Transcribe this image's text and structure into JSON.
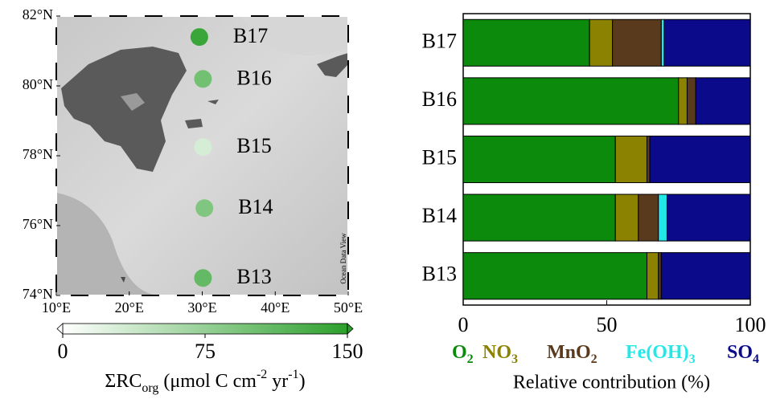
{
  "chart_data": [
    {
      "type": "map",
      "xlim": [
        10,
        50
      ],
      "ylim": [
        74,
        82
      ],
      "xticks": [
        {
          "value": 10,
          "label": "10°E"
        },
        {
          "value": 20,
          "label": "20°E"
        },
        {
          "value": 30,
          "label": "30°E"
        },
        {
          "value": 40,
          "label": "40°E"
        },
        {
          "value": 50,
          "label": "50°E"
        }
      ],
      "yticks": [
        {
          "value": 74,
          "label": "74°N"
        },
        {
          "value": 76,
          "label": "76°N"
        },
        {
          "value": 78,
          "label": "78°N"
        },
        {
          "value": 80,
          "label": "80°N"
        },
        {
          "value": 82,
          "label": "82°N"
        }
      ],
      "watermark": "Ocean Data View",
      "stations": [
        "B17",
        "B16",
        "B15",
        "B14",
        "B13"
      ],
      "x": [
        29.6,
        30.1,
        30.1,
        30.3,
        30.1
      ],
      "y": [
        81.4,
        80.2,
        78.25,
        76.5,
        74.5
      ],
      "values": [
        140,
        100,
        30,
        90,
        110
      ],
      "colorbar": {
        "lim": [
          0,
          150
        ],
        "ticks": [
          0,
          75,
          150
        ],
        "label": [
          "ΣRC",
          "org",
          " (μmol C cm",
          "-2",
          " yr",
          "-1",
          ")"
        ],
        "colors": [
          "#ffffff",
          "#2ca02c"
        ]
      }
    },
    {
      "type": "bar",
      "orientation": "horizontal",
      "stacked": true,
      "categories": [
        "B17",
        "B16",
        "B15",
        "B14",
        "B13"
      ],
      "series": [
        {
          "name": "O2",
          "color": "#0b8a0b",
          "values": [
            44,
            75,
            53,
            53,
            64
          ]
        },
        {
          "name": "NO3",
          "color": "#8a8200",
          "values": [
            8,
            3,
            11,
            8,
            4
          ]
        },
        {
          "name": "MnO2",
          "color": "#5a3a1c",
          "values": [
            17,
            3,
            1,
            7,
            1
          ]
        },
        {
          "name": "Fe(OH)3",
          "color": "#22e8e8",
          "values": [
            1,
            0,
            0,
            3,
            0
          ]
        },
        {
          "name": "SO4",
          "color": "#0a0a8a",
          "values": [
            30,
            19,
            35,
            29,
            31
          ]
        }
      ],
      "xlim": [
        0,
        100
      ],
      "xticks": [
        0,
        50,
        100
      ],
      "xlabel": "Relative contribution (%)"
    }
  ]
}
